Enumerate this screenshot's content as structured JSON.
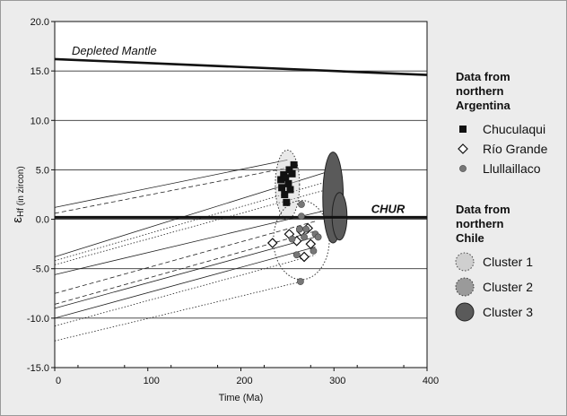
{
  "chart_data": {
    "type": "scatter",
    "title": "",
    "xlabel": "Time (Ma)",
    "ylabel_main": "ε",
    "ylabel_sub": "Hf (in zircon)",
    "xlim": [
      0,
      400
    ],
    "ylim": [
      -15,
      20
    ],
    "xticks": [
      0,
      100,
      200,
      300,
      400
    ],
    "yticks": [
      20,
      15,
      10,
      5,
      0,
      -5,
      -10,
      -15
    ],
    "ytick_labels": [
      "20.0",
      "15.0",
      "10.0",
      "5.0",
      "0.0",
      "-5.0",
      "-10.0",
      "-15.0"
    ],
    "reference_lines": [
      {
        "name": "Depleted Mantle",
        "x": [
          0,
          400
        ],
        "y": [
          16.2,
          14.6
        ]
      },
      {
        "name": "CHUR",
        "x": [
          0,
          400
        ],
        "y": [
          0.2,
          0.2
        ]
      }
    ],
    "series": [
      {
        "name": "Chuculaqui",
        "marker": "filled-square",
        "points": [
          [
            243,
            4.0
          ],
          [
            244,
            3.2
          ],
          [
            246,
            4.5
          ],
          [
            247,
            2.5
          ],
          [
            248,
            4.2
          ],
          [
            249,
            1.7
          ],
          [
            251,
            3.6
          ],
          [
            252,
            5.0
          ],
          [
            253,
            3.0
          ],
          [
            255,
            4.6
          ],
          [
            257,
            5.5
          ]
        ]
      },
      {
        "name": "Río Grande",
        "marker": "open-diamond",
        "points": [
          [
            234,
            -2.4
          ],
          [
            252,
            -1.5
          ],
          [
            260,
            -2.2
          ],
          [
            265,
            -1.2
          ],
          [
            268,
            -3.8
          ],
          [
            272,
            -0.9
          ],
          [
            275,
            -2.5
          ]
        ]
      },
      {
        "name": "Llullaillaco",
        "marker": "filled-circle",
        "points": [
          [
            255,
            -2.0
          ],
          [
            260,
            -3.6
          ],
          [
            263,
            -1.0
          ],
          [
            265,
            1.5
          ],
          [
            265,
            0.3
          ],
          [
            268,
            -1.8
          ],
          [
            270,
            -1.0
          ],
          [
            278,
            -3.2
          ],
          [
            280,
            -1.5
          ],
          [
            283,
            -1.8
          ],
          [
            264,
            -6.3
          ]
        ]
      }
    ],
    "clusters": [
      {
        "name": "Cluster 1",
        "style": "light",
        "center": [
          250,
          3.5
        ],
        "radius_x": 13,
        "radius_y": 3.5
      },
      {
        "name": "Cluster 2",
        "style": "medium",
        "center": [
          265,
          -2.1
        ],
        "radius_x": 30,
        "radius_y": 4.0
      },
      {
        "name": "Cluster 3",
        "style": "dark",
        "center": [
          299,
          2.2
        ],
        "radius_x": 11,
        "radius_y": 4.6
      },
      {
        "name": "Cluster 3",
        "style": "dark",
        "center": [
          306,
          0.3
        ],
        "radius_x": 8,
        "radius_y": 2.4
      }
    ],
    "evolution_lines": [
      {
        "x": [
          0,
          250
        ],
        "y": [
          1.2,
          6.0
        ],
        "style": "solid"
      },
      {
        "x": [
          0,
          250
        ],
        "y": [
          0.6,
          5.2
        ],
        "style": "dashed"
      },
      {
        "x": [
          0,
          300
        ],
        "y": [
          -3.8,
          5.0
        ],
        "style": "solid"
      },
      {
        "x": [
          0,
          300
        ],
        "y": [
          -4.2,
          4.0
        ],
        "style": "dotted"
      },
      {
        "x": [
          0,
          300
        ],
        "y": [
          -4.6,
          3.2
        ],
        "style": "dotted"
      },
      {
        "x": [
          0,
          305
        ],
        "y": [
          -5.6,
          1.2
        ],
        "style": "solid"
      },
      {
        "x": [
          0,
          280
        ],
        "y": [
          -7.5,
          -0.2
        ],
        "style": "dashed"
      },
      {
        "x": [
          0,
          280
        ],
        "y": [
          -8.6,
          -1.2
        ],
        "style": "dashed"
      },
      {
        "x": [
          0,
          280
        ],
        "y": [
          -9.0,
          -1.8
        ],
        "style": "solid"
      },
      {
        "x": [
          0,
          280
        ],
        "y": [
          -10.0,
          -2.8
        ],
        "style": "solid"
      },
      {
        "x": [
          0,
          280
        ],
        "y": [
          -10.8,
          -3.6
        ],
        "style": "dotted"
      },
      {
        "x": [
          0,
          265
        ],
        "y": [
          -12.3,
          -6.3
        ],
        "style": "dotted"
      }
    ],
    "legend": {
      "placement": "right",
      "groups": [
        {
          "title": [
            "Data from",
            "northern",
            "Argentina"
          ],
          "items": [
            "Chuculaqui",
            "Río Grande",
            "Llullaillaco"
          ]
        },
        {
          "title": [
            "Data from",
            "northern",
            "Chile"
          ],
          "items": [
            "Cluster 1",
            "Cluster 2",
            "Cluster 3"
          ]
        }
      ]
    },
    "colors": {
      "background": "#ececec",
      "plot_background": "#ffffff",
      "cluster1": "#cfcfcf",
      "cluster2": "#9a9a9a",
      "cluster3": "#5a5a5a",
      "line": "#111111"
    },
    "grid": true
  }
}
